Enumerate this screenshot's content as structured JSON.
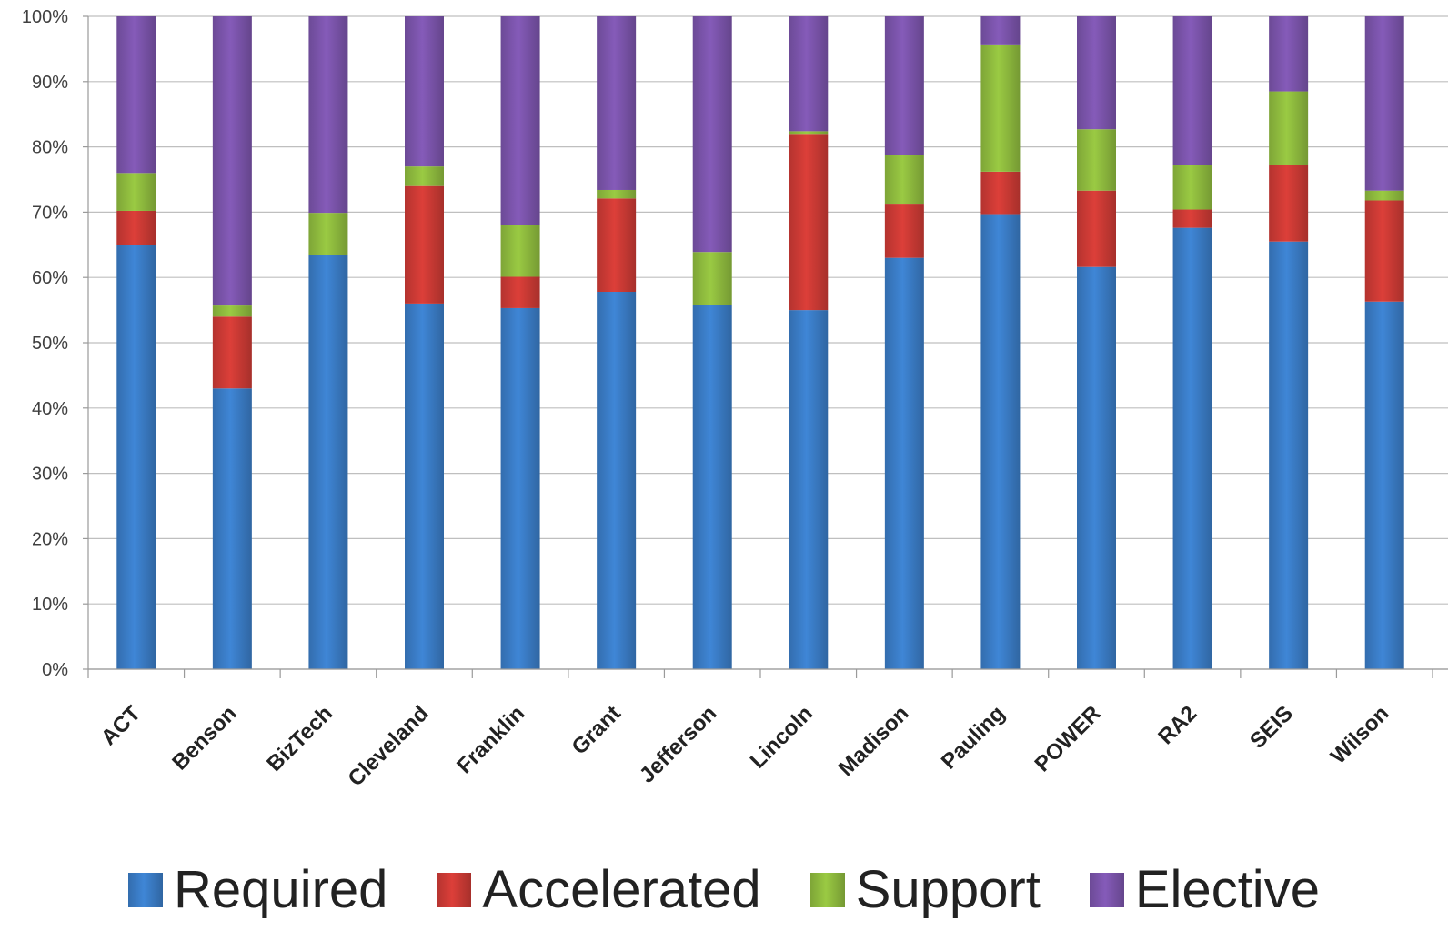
{
  "chart_data": {
    "type": "bar",
    "stacked": true,
    "percent": true,
    "title": "",
    "xlabel": "",
    "ylabel": "",
    "ylim": [
      0,
      100
    ],
    "y_ticks": [
      "0%",
      "10%",
      "20%",
      "30%",
      "40%",
      "50%",
      "60%",
      "70%",
      "80%",
      "90%",
      "100%"
    ],
    "grid": "horizontal",
    "legend_position": "bottom",
    "categories": [
      "ACT",
      "Benson",
      "BizTech",
      "Cleveland",
      "Franklin",
      "Grant",
      "Jefferson",
      "Lincoln",
      "Madison",
      "Pauling",
      "POWER",
      "RA2",
      "SEIS",
      "Wilson"
    ],
    "series": [
      {
        "name": "Required",
        "color": "#3a7cc6",
        "values": [
          65,
          43,
          63.5,
          56,
          55.3,
          57.8,
          55.8,
          55,
          63,
          69.7,
          61.6,
          67.6,
          65.5,
          56.3
        ]
      },
      {
        "name": "Accelerated",
        "color": "#cc3a35",
        "values": [
          5.2,
          11,
          0,
          18,
          4.8,
          14.3,
          0,
          27,
          8.3,
          6.5,
          11.7,
          2.8,
          11.7,
          15.5
        ]
      },
      {
        "name": "Support",
        "color": "#8fbb3e",
        "values": [
          5.8,
          1.7,
          6.4,
          3,
          8,
          1.3,
          8.1,
          0.4,
          7.4,
          19.5,
          9.4,
          6.8,
          11.3,
          1.5
        ]
      },
      {
        "name": "Elective",
        "color": "#7b54ab",
        "values": [
          24,
          44.3,
          30.1,
          23,
          31.9,
          26.6,
          36.1,
          17.6,
          21.3,
          4.3,
          17.3,
          22.8,
          11.5,
          26.7
        ]
      }
    ]
  }
}
